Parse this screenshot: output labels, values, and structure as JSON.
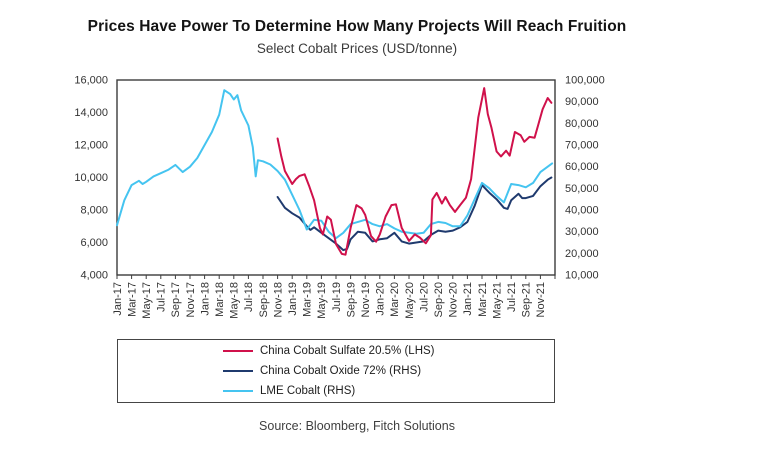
{
  "header": {
    "title": "Prices Have Power To Determine How Many Projects Will Reach Fruition",
    "subtitle": "Select Cobalt Prices (USD/tonne)"
  },
  "source_note": "Source: Bloomberg, Fitch Solutions",
  "colors": {
    "sulfate_red": "#d0114b",
    "oxide_navy": "#1f3a6e",
    "lme_blue": "#45c4f0",
    "axis": "#3c3c3c",
    "tick_text": "#333333"
  },
  "chart_data": {
    "type": "line",
    "title": "Prices Have Power To Determine How Many Projects Will Reach Fruition",
    "subtitle": "Select Cobalt Prices (USD/tonne)",
    "grid": false,
    "legend_position": "bottom",
    "left_axis": {
      "min": 4000,
      "max": 16000,
      "step": 2000
    },
    "right_axis": {
      "min": 10000,
      "max": 100000,
      "step": 10000
    },
    "x_axis": {
      "months_span": 60,
      "tick_every_months": 2,
      "tick_labels": [
        "Jan-17",
        "Mar-17",
        "May-17",
        "Jul-17",
        "Sep-17",
        "Nov-17",
        "Jan-18",
        "Mar-18",
        "May-18",
        "Jul-18",
        "Sep-18",
        "Nov-18",
        "Jan-19",
        "Mar-19",
        "May-19",
        "Jul-19",
        "Sep-19",
        "Nov-19",
        "Jan-20",
        "Mar-20",
        "May-20",
        "Jul-20",
        "Sep-20",
        "Nov-20",
        "Jan-21",
        "Mar-21",
        "May-21",
        "Jul-21",
        "Sep-21",
        "Nov-21"
      ]
    },
    "series": [
      {
        "name": "China Cobalt Sulfate 20.5% (LHS)",
        "axis": "LHS",
        "color": "#d0114b",
        "points": [
          [
            22,
            12400
          ],
          [
            22.5,
            11300
          ],
          [
            23,
            10400
          ],
          [
            24,
            9600
          ],
          [
            24.5,
            9900
          ],
          [
            25,
            10100
          ],
          [
            25.7,
            10200
          ],
          [
            26.3,
            9500
          ],
          [
            27,
            8600
          ],
          [
            27.8,
            6900
          ],
          [
            28.2,
            6500
          ],
          [
            28.8,
            7600
          ],
          [
            29.3,
            7400
          ],
          [
            30,
            5900
          ],
          [
            30.8,
            5300
          ],
          [
            31.3,
            5250
          ],
          [
            32,
            6900
          ],
          [
            32.8,
            8300
          ],
          [
            33.5,
            8100
          ],
          [
            34,
            7700
          ],
          [
            34.8,
            6400
          ],
          [
            35.5,
            6050
          ],
          [
            36,
            6500
          ],
          [
            36.8,
            7600
          ],
          [
            37.6,
            8300
          ],
          [
            38.2,
            8350
          ],
          [
            39,
            6900
          ],
          [
            40,
            6100
          ],
          [
            40.8,
            6500
          ],
          [
            41.5,
            6300
          ],
          [
            42.3,
            5950
          ],
          [
            43,
            6450
          ],
          [
            43.2,
            8650
          ],
          [
            43.8,
            9050
          ],
          [
            44.5,
            8400
          ],
          [
            45,
            8800
          ],
          [
            45.6,
            8300
          ],
          [
            46.3,
            7880
          ],
          [
            47,
            8300
          ],
          [
            47.8,
            8750
          ],
          [
            48.5,
            9900
          ],
          [
            49,
            11800
          ],
          [
            49.5,
            13700
          ],
          [
            50.3,
            15500
          ],
          [
            50.8,
            13900
          ],
          [
            51.3,
            13050
          ],
          [
            52,
            11600
          ],
          [
            52.6,
            11300
          ],
          [
            53.3,
            11650
          ],
          [
            53.8,
            11350
          ],
          [
            54.5,
            12800
          ],
          [
            55.3,
            12600
          ],
          [
            55.8,
            12200
          ],
          [
            56.5,
            12500
          ],
          [
            57.2,
            12450
          ],
          [
            57.7,
            13230
          ],
          [
            58.3,
            14200
          ],
          [
            59,
            14890
          ],
          [
            59.5,
            14600
          ]
        ]
      },
      {
        "name": "China Cobalt Oxide 72% (RHS)",
        "axis": "RHS",
        "color": "#1f3a6e",
        "points": [
          [
            22,
            46000
          ],
          [
            23,
            41000
          ],
          [
            24,
            38500
          ],
          [
            25,
            36500
          ],
          [
            26,
            32500
          ],
          [
            26.5,
            30800
          ],
          [
            27,
            32000
          ],
          [
            28,
            29500
          ],
          [
            29,
            27000
          ],
          [
            30,
            24500
          ],
          [
            31,
            21500
          ],
          [
            31.5,
            22000
          ],
          [
            32,
            26500
          ],
          [
            33,
            30000
          ],
          [
            34,
            29500
          ],
          [
            35,
            25500
          ],
          [
            36,
            26500
          ],
          [
            37,
            27000
          ],
          [
            38,
            29500
          ],
          [
            39,
            25500
          ],
          [
            40,
            24500
          ],
          [
            41,
            25000
          ],
          [
            42,
            25500
          ],
          [
            43,
            28500
          ],
          [
            44,
            30500
          ],
          [
            45,
            30000
          ],
          [
            46,
            30500
          ],
          [
            47,
            32000
          ],
          [
            48,
            34500
          ],
          [
            49,
            42000
          ],
          [
            50,
            51500
          ],
          [
            51,
            48000
          ],
          [
            52,
            45000
          ],
          [
            53,
            41000
          ],
          [
            53.5,
            40500
          ],
          [
            54,
            44500
          ],
          [
            55,
            47500
          ],
          [
            55.5,
            45500
          ],
          [
            56,
            45500
          ],
          [
            57,
            46500
          ],
          [
            58,
            51000
          ],
          [
            59,
            54000
          ],
          [
            59.5,
            55000
          ]
        ]
      },
      {
        "name": "LME Cobalt (RHS)",
        "axis": "RHS",
        "color": "#45c4f0",
        "points": [
          [
            0,
            33000
          ],
          [
            1,
            44500
          ],
          [
            2,
            51500
          ],
          [
            3,
            53500
          ],
          [
            3.5,
            52000
          ],
          [
            4,
            53000
          ],
          [
            5,
            55500
          ],
          [
            6,
            57000
          ],
          [
            7,
            58500
          ],
          [
            8,
            60800
          ],
          [
            9,
            57500
          ],
          [
            10,
            60000
          ],
          [
            11,
            64000
          ],
          [
            12,
            70000
          ],
          [
            13,
            76000
          ],
          [
            14,
            84000
          ],
          [
            14.7,
            95300
          ],
          [
            15.5,
            93500
          ],
          [
            16,
            91000
          ],
          [
            16.5,
            93000
          ],
          [
            17,
            86000
          ],
          [
            18,
            79000
          ],
          [
            18.6,
            69000
          ],
          [
            19,
            55500
          ],
          [
            19.3,
            63000
          ],
          [
            20,
            62500
          ],
          [
            21,
            61000
          ],
          [
            22,
            58000
          ],
          [
            23,
            54000
          ],
          [
            24,
            47000
          ],
          [
            25,
            40000
          ],
          [
            26,
            31000
          ],
          [
            27,
            35500
          ],
          [
            28,
            35000
          ],
          [
            29,
            30000
          ],
          [
            30,
            27000
          ],
          [
            31,
            29500
          ],
          [
            32,
            33500
          ],
          [
            33,
            34500
          ],
          [
            34,
            35500
          ],
          [
            35,
            33500
          ],
          [
            36,
            32500
          ],
          [
            37,
            33500
          ],
          [
            38,
            31500
          ],
          [
            39,
            30000
          ],
          [
            40,
            29500
          ],
          [
            41,
            29000
          ],
          [
            42,
            29500
          ],
          [
            43,
            33500
          ],
          [
            44,
            34500
          ],
          [
            45,
            34000
          ],
          [
            46,
            32500
          ],
          [
            47,
            32500
          ],
          [
            48,
            37500
          ],
          [
            49,
            45000
          ],
          [
            50,
            52500
          ],
          [
            51,
            50000
          ],
          [
            52,
            46500
          ],
          [
            53,
            43500
          ],
          [
            54,
            52000
          ],
          [
            55,
            51500
          ],
          [
            56,
            50500
          ],
          [
            57,
            52500
          ],
          [
            58,
            57500
          ],
          [
            59,
            60000
          ],
          [
            59.6,
            61500
          ]
        ]
      }
    ]
  }
}
